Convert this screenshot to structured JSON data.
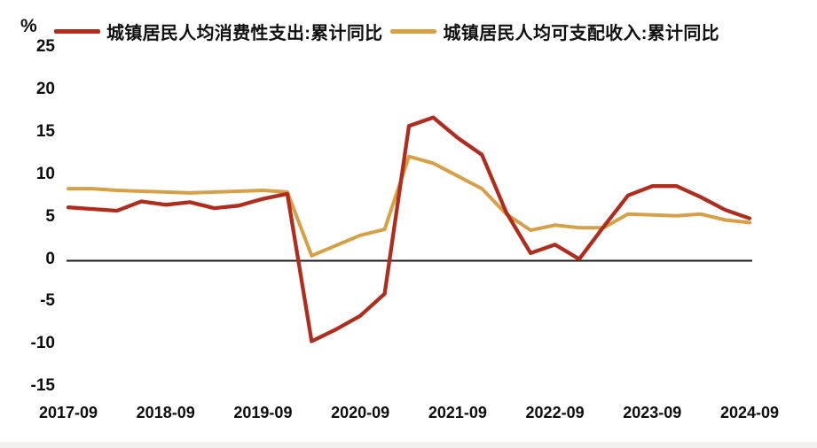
{
  "chart_data": {
    "type": "line",
    "unit_label": "%",
    "x": [
      "2017-09",
      "2017-12",
      "2018-03",
      "2018-06",
      "2018-09",
      "2018-12",
      "2019-03",
      "2019-06",
      "2019-09",
      "2019-12",
      "2020-03",
      "2020-06",
      "2020-09",
      "2020-12",
      "2021-03",
      "2021-06",
      "2021-09",
      "2021-12",
      "2022-03",
      "2022-06",
      "2022-09",
      "2022-12",
      "2023-03",
      "2023-06",
      "2023-09",
      "2023-12",
      "2024-03",
      "2024-06",
      "2024-09"
    ],
    "x_tick_labels": [
      "2017-09",
      "2018-09",
      "2019-09",
      "2020-09",
      "2021-09",
      "2022-09",
      "2023-09",
      "2024-09"
    ],
    "yticks": [
      25,
      20,
      15,
      10,
      5,
      0,
      -5,
      -10,
      -15
    ],
    "ylim": [
      -15,
      25
    ],
    "grid": "off",
    "legend_position": "top",
    "zero_line_color": "#1a1a1a",
    "series": [
      {
        "id": "expenditure",
        "name": "城镇居民人均消费性支出:累计同比",
        "color": "#b02c1d",
        "values": [
          6.3,
          6.1,
          5.9,
          7.0,
          6.6,
          6.9,
          6.2,
          6.5,
          7.3,
          7.9,
          -9.5,
          -8.1,
          -6.5,
          -3.9,
          15.9,
          16.9,
          14.5,
          12.5,
          5.7,
          0.9,
          1.9,
          0.2,
          4.0,
          7.7,
          8.8,
          8.8,
          7.5,
          6.0,
          5.0
        ]
      },
      {
        "id": "income",
        "name": "城镇居民人均可支配收入:累计同比",
        "color": "#d7a044",
        "values": [
          8.5,
          8.5,
          8.3,
          8.2,
          8.1,
          8.0,
          8.1,
          8.2,
          8.3,
          8.1,
          0.6,
          1.8,
          3.0,
          3.7,
          12.3,
          11.5,
          10.0,
          8.5,
          5.5,
          3.6,
          4.2,
          3.9,
          3.9,
          5.5,
          5.4,
          5.3,
          5.5,
          4.8,
          4.5
        ]
      }
    ]
  }
}
